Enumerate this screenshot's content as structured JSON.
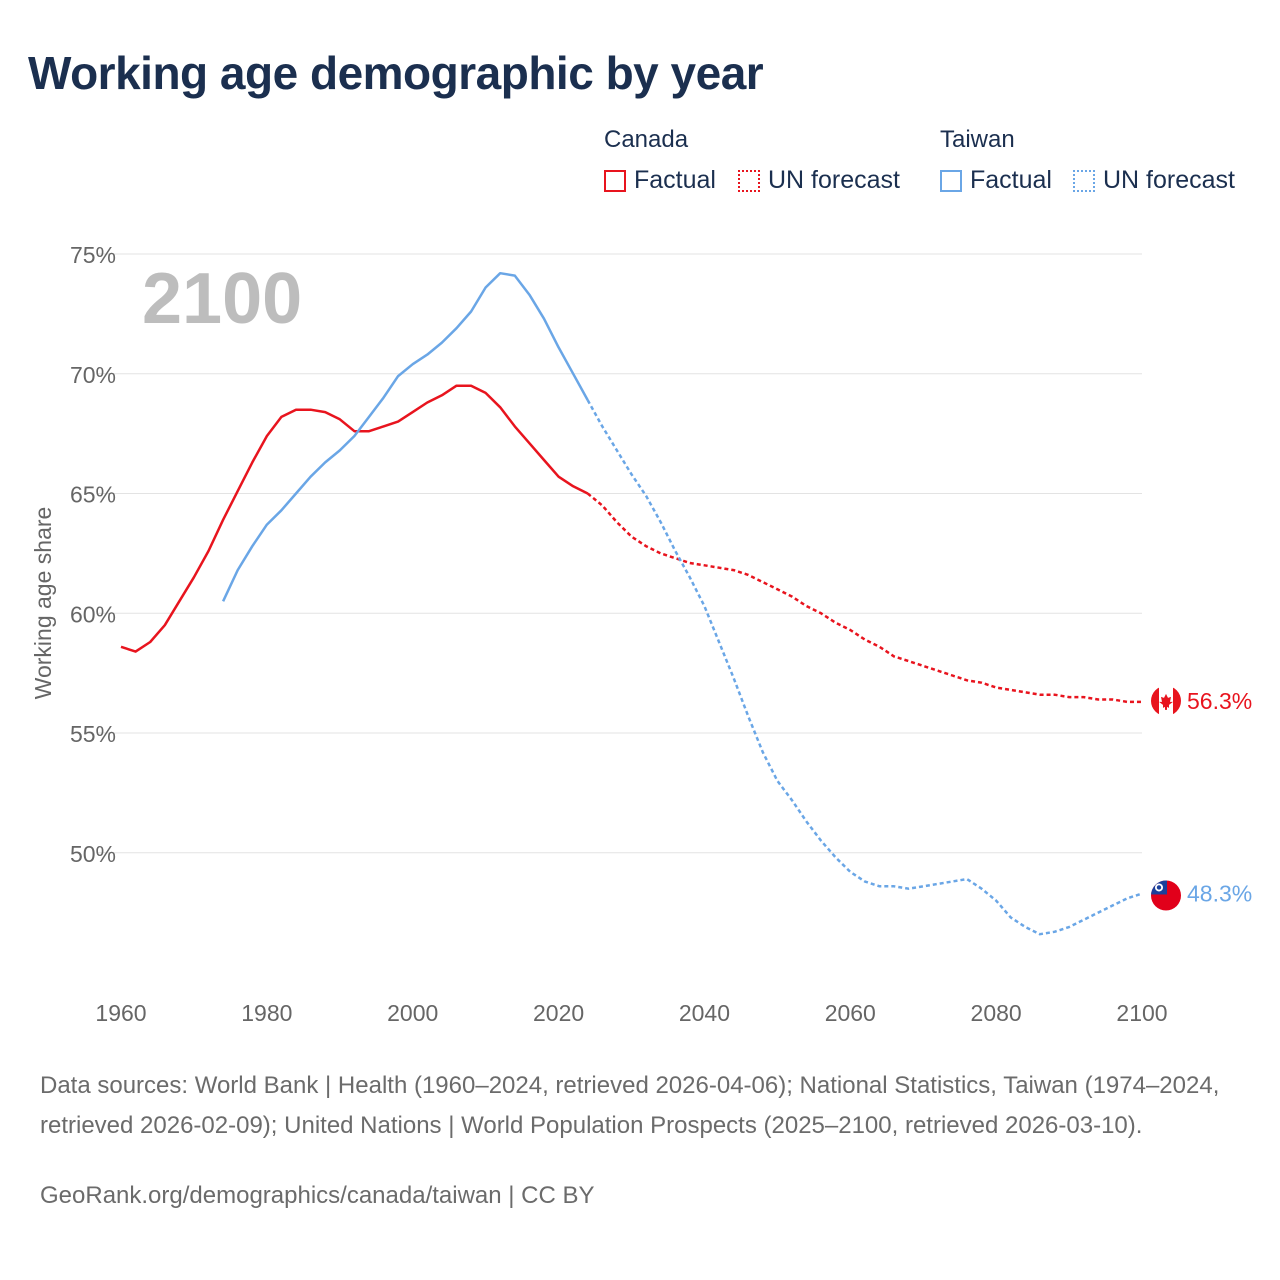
{
  "title": "Working age demographic by year",
  "legend": {
    "groups": [
      {
        "name": "Canada",
        "factual": "Factual",
        "forecast": "UN forecast"
      },
      {
        "name": "Taiwan",
        "factual": "Factual",
        "forecast": "UN forecast"
      }
    ]
  },
  "colors": {
    "canada": "#e8141e",
    "taiwan": "#6aa6e6",
    "grid": "#e3e3e3",
    "axis_text": "#666666",
    "year_watermark": "#bdbdbd"
  },
  "footer": {
    "sources": "Data sources: World Bank | Health (1960–2024, retrieved 2026-04-06); National Statistics, Taiwan (1974–2024, retrieved 2026-02-09); United Nations | World Population Prospects (2025–2100, retrieved 2026-03-10).",
    "credit": "GeoRank.org/demographics/canada/taiwan | CC BY"
  },
  "chart_data": {
    "type": "line",
    "title": "Working age demographic by year",
    "year_label": "2100",
    "ylabel": "Working age share",
    "xlabel": "",
    "xlim": [
      1960,
      2100
    ],
    "ylim": [
      45,
      75
    ],
    "yticks": [
      50,
      55,
      60,
      65,
      70,
      75
    ],
    "ytick_labels": [
      "50%",
      "55%",
      "60%",
      "65%",
      "70%",
      "75%"
    ],
    "xticks": [
      1960,
      1980,
      2000,
      2020,
      2040,
      2060,
      2080,
      2100
    ],
    "xtick_labels": [
      "1960",
      "1980",
      "2000",
      "2020",
      "2040",
      "2060",
      "2080",
      "2100"
    ],
    "grid": true,
    "series": [
      {
        "name": "Canada",
        "end_label": "56.3%",
        "factual": {
          "x": [
            1960,
            1962,
            1964,
            1966,
            1968,
            1970,
            1972,
            1974,
            1976,
            1978,
            1980,
            1982,
            1984,
            1986,
            1988,
            1990,
            1992,
            1994,
            1996,
            1998,
            2000,
            2002,
            2004,
            2006,
            2008,
            2010,
            2012,
            2014,
            2016,
            2018,
            2020,
            2022,
            2024
          ],
          "y": [
            58.6,
            58.4,
            58.8,
            59.5,
            60.5,
            61.5,
            62.6,
            63.9,
            65.1,
            66.3,
            67.4,
            68.2,
            68.5,
            68.5,
            68.4,
            68.1,
            67.6,
            67.6,
            67.8,
            68.0,
            68.4,
            68.8,
            69.1,
            69.5,
            69.5,
            69.2,
            68.6,
            67.8,
            67.1,
            66.4,
            65.7,
            65.3,
            65.0
          ]
        },
        "forecast": {
          "x": [
            2024,
            2026,
            2028,
            2030,
            2032,
            2034,
            2036,
            2038,
            2040,
            2042,
            2044,
            2046,
            2048,
            2050,
            2052,
            2054,
            2056,
            2058,
            2060,
            2062,
            2064,
            2066,
            2068,
            2070,
            2072,
            2074,
            2076,
            2078,
            2080,
            2082,
            2084,
            2086,
            2088,
            2090,
            2092,
            2094,
            2096,
            2098,
            2100
          ],
          "y": [
            65.0,
            64.5,
            63.8,
            63.2,
            62.8,
            62.5,
            62.3,
            62.1,
            62.0,
            61.9,
            61.8,
            61.6,
            61.3,
            61.0,
            60.7,
            60.3,
            60.0,
            59.6,
            59.3,
            58.9,
            58.6,
            58.2,
            58.0,
            57.8,
            57.6,
            57.4,
            57.2,
            57.1,
            56.9,
            56.8,
            56.7,
            56.6,
            56.6,
            56.5,
            56.5,
            56.4,
            56.4,
            56.3,
            56.3
          ]
        }
      },
      {
        "name": "Taiwan",
        "end_label": "48.3%",
        "factual": {
          "x": [
            1974,
            1976,
            1978,
            1980,
            1982,
            1984,
            1986,
            1988,
            1990,
            1992,
            1994,
            1996,
            1998,
            2000,
            2002,
            2004,
            2006,
            2008,
            2010,
            2012,
            2014,
            2016,
            2018,
            2020,
            2022,
            2024
          ],
          "y": [
            60.5,
            61.8,
            62.8,
            63.7,
            64.3,
            65.0,
            65.7,
            66.3,
            66.8,
            67.4,
            68.2,
            69.0,
            69.9,
            70.4,
            70.8,
            71.3,
            71.9,
            72.6,
            73.6,
            74.2,
            74.1,
            73.3,
            72.3,
            71.1,
            70.0,
            68.9
          ]
        },
        "forecast": {
          "x": [
            2024,
            2026,
            2028,
            2030,
            2032,
            2034,
            2036,
            2038,
            2040,
            2042,
            2044,
            2046,
            2048,
            2050,
            2052,
            2054,
            2056,
            2058,
            2060,
            2062,
            2064,
            2066,
            2068,
            2070,
            2072,
            2074,
            2076,
            2078,
            2080,
            2082,
            2084,
            2086,
            2088,
            2090,
            2092,
            2094,
            2096,
            2098,
            2100
          ],
          "y": [
            68.9,
            67.8,
            66.8,
            65.8,
            64.9,
            63.8,
            62.6,
            61.5,
            60.3,
            58.8,
            57.3,
            55.7,
            54.2,
            53.0,
            52.2,
            51.3,
            50.5,
            49.8,
            49.2,
            48.8,
            48.6,
            48.6,
            48.5,
            48.6,
            48.7,
            48.8,
            48.9,
            48.5,
            48.0,
            47.3,
            46.9,
            46.6,
            46.7,
            46.9,
            47.2,
            47.5,
            47.8,
            48.1,
            48.3
          ]
        }
      }
    ]
  }
}
